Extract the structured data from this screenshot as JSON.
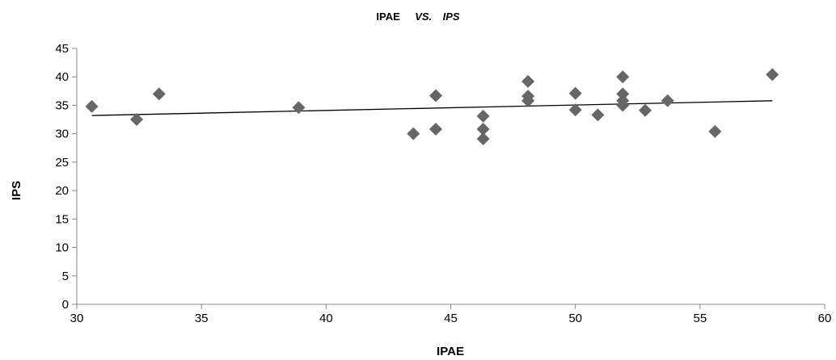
{
  "chart_data": {
    "type": "scatter",
    "title": {
      "part1": "IPAE",
      "part2": "VS.",
      "part3": "IPS"
    },
    "xlabel": "IPAE",
    "ylabel": "IPS",
    "xlim": [
      30,
      60
    ],
    "ylim": [
      0,
      45
    ],
    "xticks": [
      30,
      35,
      40,
      45,
      50,
      55,
      60
    ],
    "yticks": [
      0,
      5,
      10,
      15,
      20,
      25,
      30,
      35,
      40,
      45
    ],
    "grid": false,
    "marker": "diamond",
    "marker_color": "#666666",
    "trendline": {
      "type": "linear",
      "x": [
        30.6,
        57.9
      ],
      "y": [
        33.2,
        35.8
      ],
      "color": "#000000"
    },
    "points": [
      {
        "x": 30.6,
        "y": 34.8
      },
      {
        "x": 32.4,
        "y": 32.5
      },
      {
        "x": 33.3,
        "y": 37.0
      },
      {
        "x": 38.9,
        "y": 34.6
      },
      {
        "x": 43.5,
        "y": 30.0
      },
      {
        "x": 44.4,
        "y": 30.8
      },
      {
        "x": 44.4,
        "y": 36.7
      },
      {
        "x": 46.3,
        "y": 29.1
      },
      {
        "x": 46.3,
        "y": 30.8
      },
      {
        "x": 46.3,
        "y": 33.1
      },
      {
        "x": 48.1,
        "y": 35.8
      },
      {
        "x": 48.1,
        "y": 36.6
      },
      {
        "x": 48.1,
        "y": 39.2
      },
      {
        "x": 50.0,
        "y": 34.2
      },
      {
        "x": 50.0,
        "y": 37.1
      },
      {
        "x": 50.9,
        "y": 33.3
      },
      {
        "x": 51.9,
        "y": 35.0
      },
      {
        "x": 51.9,
        "y": 35.8
      },
      {
        "x": 51.9,
        "y": 37.0
      },
      {
        "x": 51.9,
        "y": 40.0
      },
      {
        "x": 52.8,
        "y": 34.1
      },
      {
        "x": 53.7,
        "y": 35.8
      },
      {
        "x": 55.6,
        "y": 30.4
      },
      {
        "x": 57.9,
        "y": 40.4
      }
    ]
  }
}
